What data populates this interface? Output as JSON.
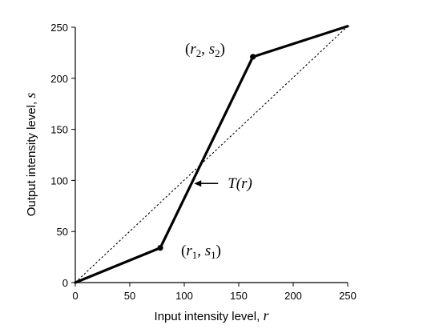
{
  "chart_data": {
    "type": "line",
    "title": "",
    "xlabel": "Input intensity level,",
    "xlabel_symbol": "r",
    "ylabel": "Output intensity level,",
    "ylabel_symbol": "s",
    "xlim": [
      0,
      250
    ],
    "ylim": [
      0,
      250
    ],
    "xticks": [
      0,
      50,
      100,
      150,
      200,
      250
    ],
    "yticks": [
      0,
      50,
      100,
      150,
      200,
      250
    ],
    "grid": false,
    "series": [
      {
        "style": "solid-thick",
        "color": "#000000",
        "x": [
          0,
          78,
          163,
          250
        ],
        "y": [
          0,
          34,
          221,
          251
        ]
      },
      {
        "style": "dotted",
        "color": "#000000",
        "x": [
          0,
          250
        ],
        "y": [
          0,
          251
        ]
      }
    ],
    "control_points": [
      {
        "label_base": "(r",
        "sub1": "1",
        "mid": ", s",
        "sub2": "1",
        "end": ")",
        "x": 78,
        "y": 34
      },
      {
        "label_base": "(r",
        "sub1": "2",
        "mid": ", s",
        "sub2": "2",
        "end": ")",
        "x": 163,
        "y": 221
      }
    ],
    "function_label": {
      "text": "T(r)",
      "arrow_target_x": 109,
      "arrow_target_y": 97
    }
  }
}
